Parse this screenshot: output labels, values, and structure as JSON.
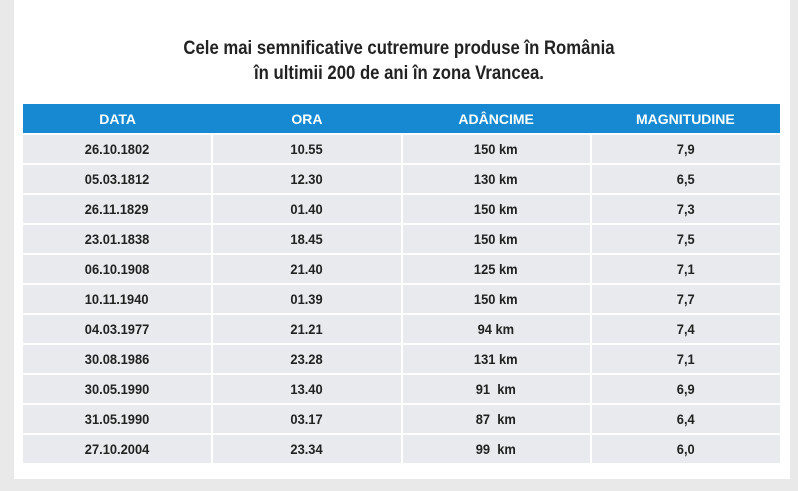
{
  "title": {
    "line1": "Cele mai semnificative cutremure produse în România",
    "line2": "în ultimii 200 de ani în zona Vrancea."
  },
  "colors": {
    "header": "#1789d2",
    "cell": "#e8eaed"
  },
  "table": {
    "headers": [
      "DATA",
      "ORA",
      "ADÂNCIME",
      "MAGNITUDINE"
    ],
    "rows": [
      [
        "26.10.1802",
        "10.55",
        "150 km",
        "7,9"
      ],
      [
        "05.03.1812",
        "12.30",
        "130 km",
        "6,5"
      ],
      [
        "26.11.1829",
        "01.40",
        "150 km",
        "7,3"
      ],
      [
        "23.01.1838",
        "18.45",
        "150 km",
        "7,5"
      ],
      [
        "06.10.1908",
        "21.40",
        "125 km",
        "7,1"
      ],
      [
        "10.11.1940",
        "01.39",
        "150 km",
        "7,7"
      ],
      [
        "04.03.1977",
        "21.21",
        "94 km",
        "7,4"
      ],
      [
        "30.08.1986",
        "23.28",
        "131 km",
        "7,1"
      ],
      [
        "30.05.1990",
        "13.40",
        "91  km",
        "6,9"
      ],
      [
        "31.05.1990",
        "03.17",
        "87  km",
        "6,4"
      ],
      [
        "27.10.2004",
        "23.34",
        "99  km",
        "6,0"
      ]
    ]
  }
}
